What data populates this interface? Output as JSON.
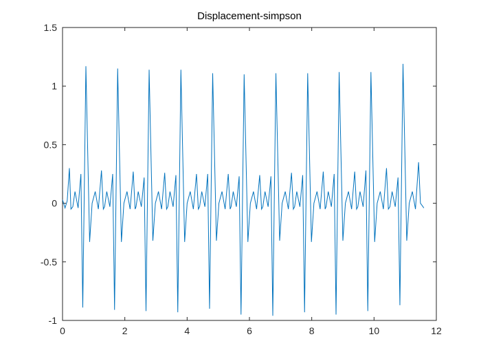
{
  "chart_data": {
    "type": "line",
    "title": "Displacement-simpson",
    "x": [
      0,
      0.08,
      0.15,
      0.22,
      0.27,
      0.33,
      0.4,
      0.5,
      0.59,
      0.65,
      0.75,
      0.87,
      0.95,
      1.05,
      1.15,
      1.25,
      1.31,
      1.35,
      1.42,
      1.52,
      1.61,
      1.67,
      1.77,
      1.89,
      1.97,
      2.07,
      2.17,
      2.27,
      2.33,
      2.36,
      2.43,
      2.53,
      2.62,
      2.68,
      2.78,
      2.9,
      2.98,
      3.08,
      3.18,
      3.28,
      3.34,
      3.38,
      3.45,
      3.55,
      3.64,
      3.7,
      3.8,
      3.92,
      4.0,
      4.1,
      4.2,
      4.3,
      4.36,
      4.4,
      4.47,
      4.57,
      4.66,
      4.72,
      4.82,
      4.94,
      5.02,
      5.12,
      5.22,
      5.32,
      5.38,
      5.41,
      5.48,
      5.58,
      5.67,
      5.73,
      5.83,
      5.95,
      6.03,
      6.13,
      6.23,
      6.33,
      6.39,
      6.43,
      6.5,
      6.6,
      6.69,
      6.75,
      6.85,
      6.97,
      7.05,
      7.15,
      7.25,
      7.35,
      7.41,
      7.45,
      7.52,
      7.62,
      7.71,
      7.77,
      7.87,
      7.99,
      8.07,
      8.17,
      8.27,
      8.37,
      8.43,
      8.46,
      8.53,
      8.63,
      8.72,
      8.78,
      8.88,
      9.0,
      9.08,
      9.18,
      9.28,
      9.38,
      9.44,
      9.48,
      9.55,
      9.65,
      9.74,
      9.8,
      9.9,
      10.02,
      10.1,
      10.2,
      10.3,
      10.4,
      10.46,
      10.51,
      10.58,
      10.68,
      10.77,
      10.83,
      10.93,
      11.05,
      11.13,
      11.23,
      11.33,
      11.43,
      11.49,
      11.6
    ],
    "series": [
      {
        "color": "#0072bd",
        "values": [
          0.03,
          -0.04,
          0.02,
          0.3,
          -0.05,
          -0.03,
          0.1,
          -0.04,
          0.25,
          -0.89,
          1.17,
          -0.33,
          0.0,
          0.1,
          -0.05,
          0.28,
          -0.05,
          -0.03,
          0.1,
          -0.03,
          0.25,
          -0.91,
          1.15,
          -0.33,
          0.0,
          0.1,
          -0.05,
          0.27,
          -0.05,
          -0.03,
          0.1,
          -0.03,
          0.22,
          -0.92,
          1.14,
          -0.32,
          0.0,
          0.1,
          -0.05,
          0.26,
          -0.05,
          -0.03,
          0.1,
          -0.03,
          0.24,
          -0.93,
          1.14,
          -0.33,
          0.0,
          0.1,
          -0.05,
          0.25,
          -0.05,
          -0.03,
          0.1,
          -0.03,
          0.25,
          -0.9,
          1.11,
          -0.32,
          0.0,
          0.1,
          -0.05,
          0.25,
          -0.05,
          -0.03,
          0.1,
          -0.03,
          0.23,
          -0.95,
          1.1,
          -0.33,
          0.0,
          0.1,
          -0.05,
          0.24,
          -0.05,
          -0.03,
          0.1,
          -0.03,
          0.23,
          -0.96,
          1.11,
          -0.32,
          0.0,
          0.1,
          -0.05,
          0.26,
          -0.05,
          -0.03,
          0.1,
          -0.03,
          0.24,
          -0.93,
          1.11,
          -0.33,
          0.0,
          0.1,
          -0.05,
          0.27,
          -0.05,
          -0.03,
          0.1,
          -0.03,
          0.25,
          -0.95,
          1.12,
          -0.32,
          0.0,
          0.1,
          -0.05,
          0.27,
          -0.05,
          -0.03,
          0.1,
          -0.03,
          0.28,
          -0.92,
          1.12,
          -0.33,
          0.0,
          0.1,
          -0.05,
          0.3,
          -0.05,
          -0.03,
          0.1,
          -0.03,
          0.22,
          -0.87,
          1.19,
          -0.32,
          0.0,
          0.1,
          -0.05,
          0.35,
          0.0,
          -0.04
        ]
      }
    ],
    "xlim": [
      0,
      12
    ],
    "xticks": [
      0,
      2,
      4,
      6,
      8,
      10,
      12
    ],
    "ylim": [
      -1,
      1.5
    ],
    "yticks": [
      -1,
      -0.5,
      0,
      0.5,
      1,
      1.5
    ],
    "grid": false
  }
}
